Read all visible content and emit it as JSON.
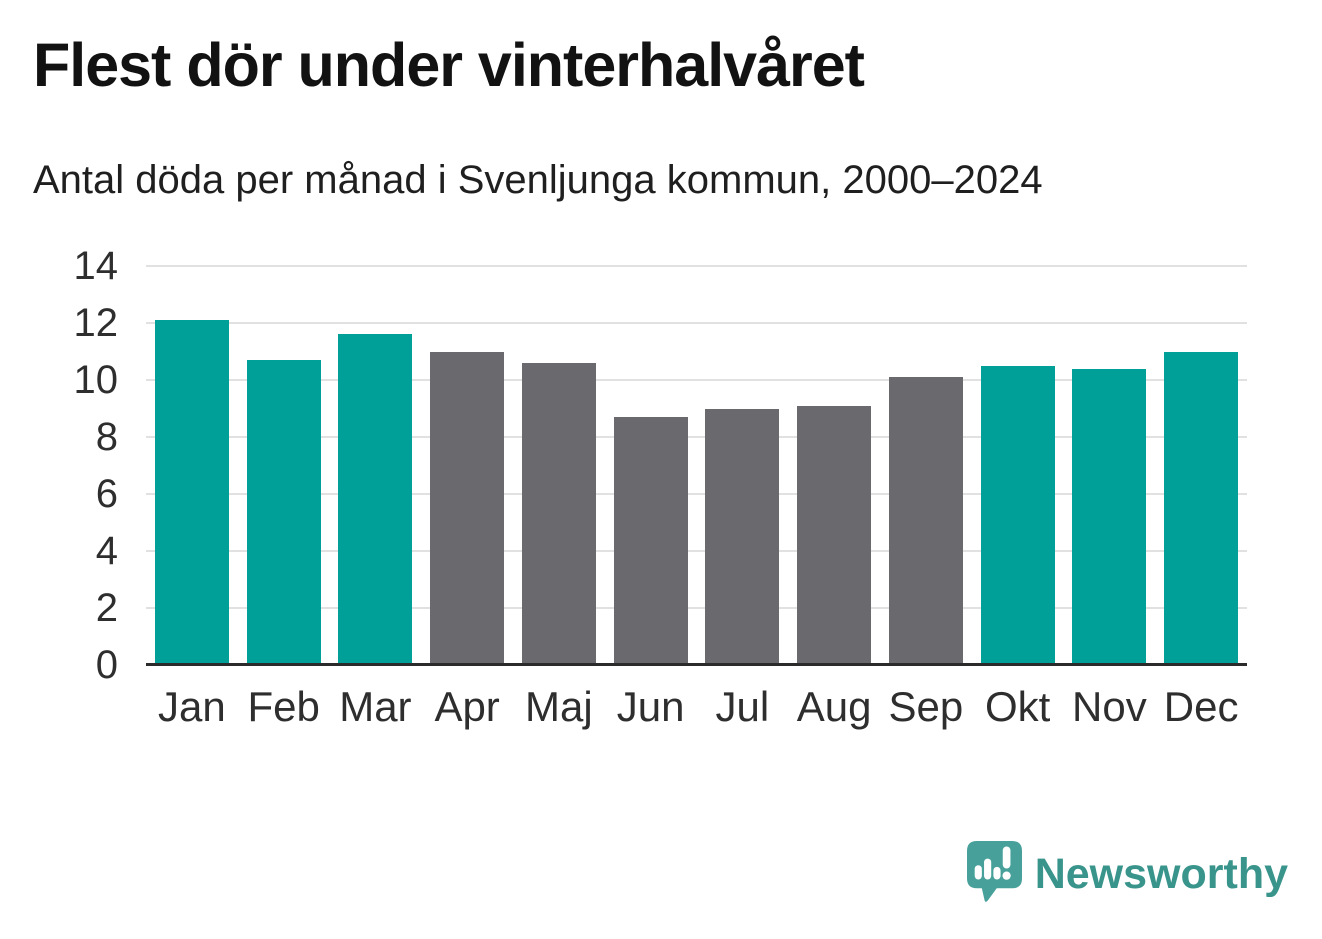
{
  "header": {
    "title": "Flest dör under vinterhalvåret",
    "subtitle": "Antal döda per månad i Svenljunga kommun, 2000–2024"
  },
  "chart_data": {
    "type": "bar",
    "title": "Flest dör under vinterhalvåret",
    "subtitle": "Antal döda per månad i Svenljunga kommun, 2000–2024",
    "categories": [
      "Jan",
      "Feb",
      "Mar",
      "Apr",
      "Maj",
      "Jun",
      "Jul",
      "Aug",
      "Sep",
      "Okt",
      "Nov",
      "Dec"
    ],
    "values": [
      12.1,
      10.7,
      11.6,
      11.0,
      10.6,
      8.7,
      9.0,
      9.1,
      10.1,
      10.5,
      10.4,
      11.0
    ],
    "bar_colors": [
      "#00a099",
      "#00a099",
      "#00a099",
      "#6a6a6e",
      "#6a6a6e",
      "#6a6a6e",
      "#6a6a6e",
      "#6a6a6e",
      "#6a6a6e",
      "#00a099",
      "#00a099",
      "#00a099"
    ],
    "xlabel": "",
    "ylabel": "",
    "ylim": [
      0,
      14
    ],
    "yticks": [
      0,
      2,
      4,
      6,
      8,
      10,
      12,
      14
    ],
    "grid": "horizontal",
    "legend": "none"
  },
  "colors": {
    "winter_bar": "#00a099",
    "summer_bar": "#6a6a6e",
    "gridline": "#e1e1e1",
    "axis_line": "#2b2b2b",
    "title_text": "#121212",
    "tick_text": "#2e2e2e",
    "logo_teal": "#39948c",
    "logo_icon_teal": "#47a19a"
  },
  "branding": {
    "logo_text": "Newsworthy",
    "logo_icon": "newsworthy-speech-bubble-bars-exclamation-icon"
  }
}
